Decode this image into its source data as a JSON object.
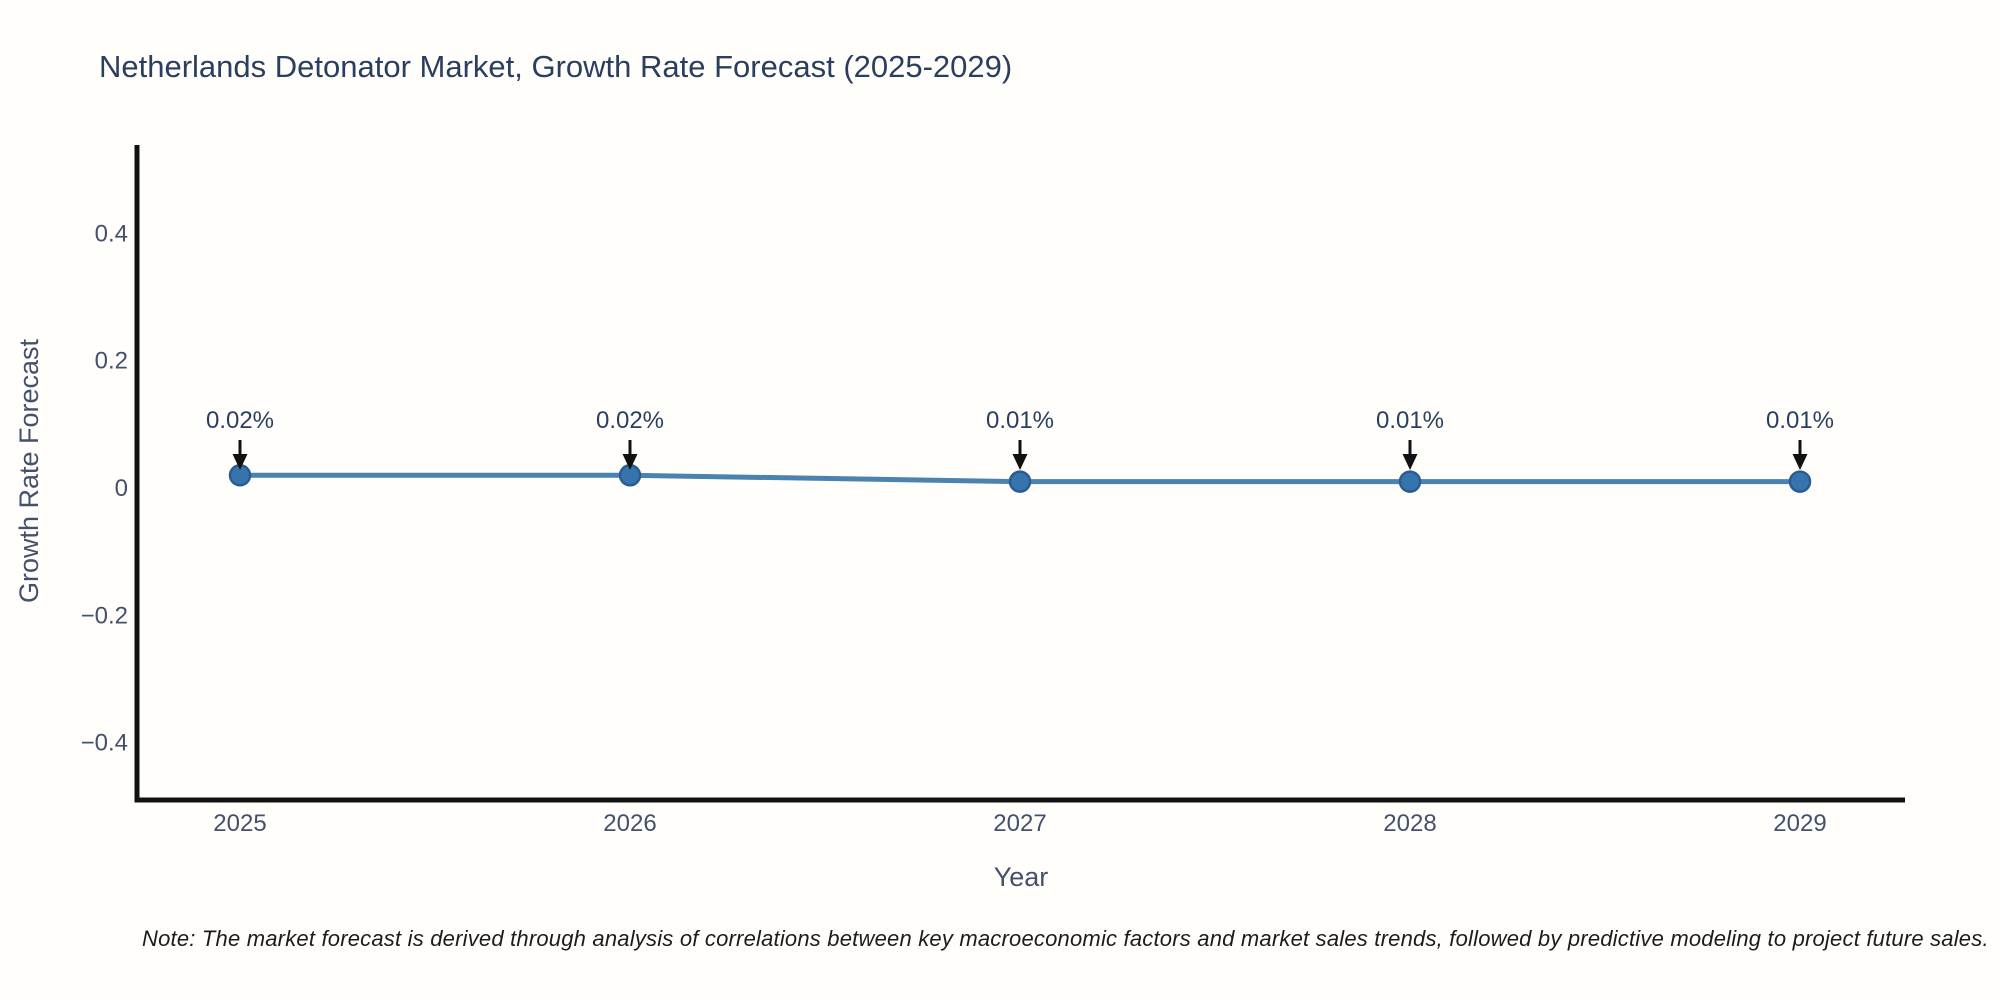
{
  "title": "Netherlands Detonator Market, Growth Rate Forecast (2025-2029)",
  "note": "Note: The market forecast is derived through analysis of correlations between key macroeconomic factors and market sales trends, followed by predictive modeling to project future sales.",
  "chart_data": {
    "type": "line",
    "title": "Netherlands Detonator Market, Growth Rate Forecast (2025-2029)",
    "xlabel": "Year",
    "ylabel": "Growth Rate Forecast",
    "categories": [
      "2025",
      "2026",
      "2027",
      "2028",
      "2029"
    ],
    "x": [
      2025,
      2026,
      2027,
      2028,
      2029
    ],
    "series": [
      {
        "name": "Growth Rate Forecast",
        "values": [
          0.02,
          0.02,
          0.01,
          0.01,
          0.01
        ],
        "point_labels": [
          "0.02%",
          "0.02%",
          "0.01%",
          "0.01%",
          "0.01%"
        ]
      }
    ],
    "yticks": [
      0.4,
      0.2,
      0,
      -0.2,
      -0.4
    ],
    "ytick_labels": [
      "0.4",
      "0.2",
      "0",
      "−0.2",
      "−0.4"
    ],
    "ylim": [
      -0.49,
      0.54
    ],
    "grid": false,
    "legend_position": "none",
    "marker_style": "circle",
    "annotations": "value labels with down arrows above each point"
  },
  "colors": {
    "background": "#fffefb",
    "title": "#2a3f5f",
    "axis_title": "#44516c",
    "tick_label": "#44516c",
    "annotation_text": "#2a3f5f",
    "axis_line": "#111111",
    "line": "#4a82b0",
    "marker_fill": "#3674ad",
    "marker_edge": "#2a5d8f",
    "arrow": "#111111",
    "note_text": "#1c1c1c"
  }
}
